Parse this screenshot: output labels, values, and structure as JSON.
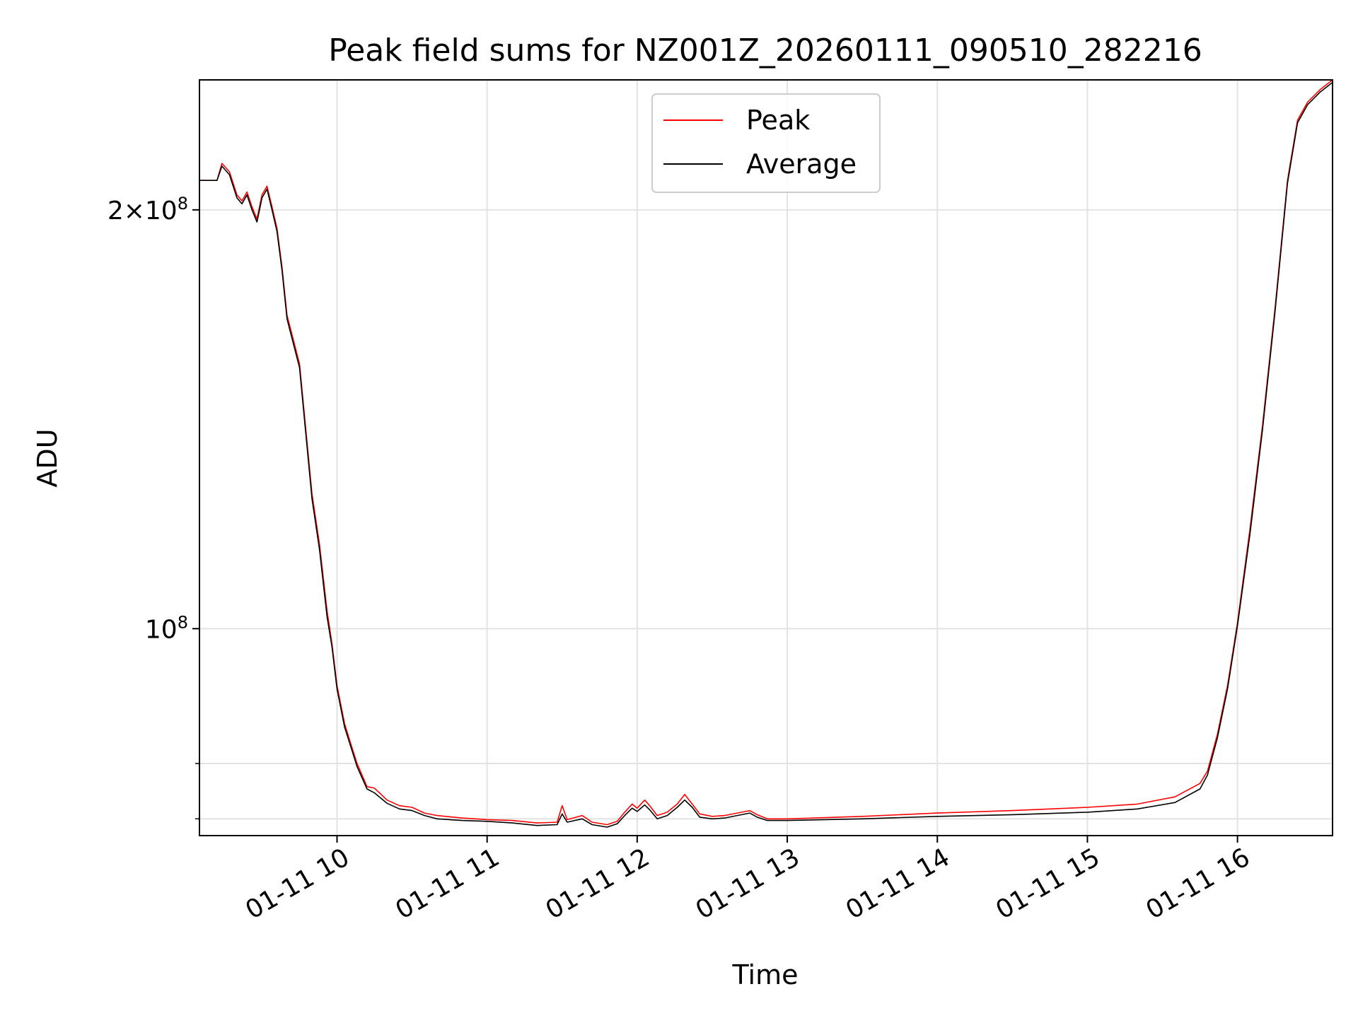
{
  "chart_data": {
    "type": "line",
    "title": "Peak field sums for NZ001Z_20260111_090510_282216",
    "xlabel": "Time",
    "ylabel": "ADU",
    "yscale": "log",
    "grid": true,
    "legend_placement": "upper-center",
    "xlim": [
      "2026-01-11 09:05",
      "2026-01-11 16:38"
    ],
    "ylim": [
      71000000,
      248000000
    ],
    "x_ticks": [
      {
        "value": "2026-01-11 10:00",
        "label": "01-11 10"
      },
      {
        "value": "2026-01-11 11:00",
        "label": "01-11 11"
      },
      {
        "value": "2026-01-11 12:00",
        "label": "01-11 12"
      },
      {
        "value": "2026-01-11 13:00",
        "label": "01-11 13"
      },
      {
        "value": "2026-01-11 14:00",
        "label": "01-11 14"
      },
      {
        "value": "2026-01-11 15:00",
        "label": "01-11 15"
      },
      {
        "value": "2026-01-11 16:00",
        "label": "01-11 16"
      }
    ],
    "y_major_ticks": [
      {
        "value": 100000000,
        "base": "10",
        "exp": "8",
        "mantissa": ""
      },
      {
        "value": 200000000,
        "base": "10",
        "exp": "8",
        "mantissa": "2×"
      }
    ],
    "y_minor_ticks": [
      73000000,
      80000000
    ],
    "colors": {
      "peak": "#ff0000",
      "average": "#000000",
      "grid": "#e3e3e3"
    },
    "series": [
      {
        "name": "Peak",
        "color": "#ff0000",
        "points": [
          [
            "2026-01-11 09:05",
            210000000
          ],
          [
            "2026-01-11 09:12",
            210000000
          ],
          [
            "2026-01-11 09:14",
            216000000
          ],
          [
            "2026-01-11 09:17",
            213000000
          ],
          [
            "2026-01-11 09:20",
            205000000
          ],
          [
            "2026-01-11 09:22",
            203000000
          ],
          [
            "2026-01-11 09:24",
            206000000
          ],
          [
            "2026-01-11 09:26",
            201000000
          ],
          [
            "2026-01-11 09:28",
            197000000
          ],
          [
            "2026-01-11 09:30",
            205000000
          ],
          [
            "2026-01-11 09:32",
            208000000
          ],
          [
            "2026-01-11 09:34",
            201000000
          ],
          [
            "2026-01-11 09:36",
            194000000
          ],
          [
            "2026-01-11 09:38",
            182000000
          ],
          [
            "2026-01-11 09:40",
            168000000
          ],
          [
            "2026-01-11 09:45",
            155000000
          ],
          [
            "2026-01-11 09:50",
            125000000
          ],
          [
            "2026-01-11 09:53",
            115000000
          ],
          [
            "2026-01-11 09:56",
            103000000
          ],
          [
            "2026-01-11 09:58",
            97500000
          ],
          [
            "2026-01-11 10:00",
            91000000
          ],
          [
            "2026-01-11 10:03",
            85500000
          ],
          [
            "2026-01-11 10:05",
            83200000
          ],
          [
            "2026-01-11 10:08",
            80000000
          ],
          [
            "2026-01-11 10:12",
            77000000
          ],
          [
            "2026-01-11 10:15",
            76800000
          ],
          [
            "2026-01-11 10:20",
            75300000
          ],
          [
            "2026-01-11 10:25",
            74600000
          ],
          [
            "2026-01-11 10:30",
            74400000
          ],
          [
            "2026-01-11 10:35",
            73700000
          ],
          [
            "2026-01-11 10:40",
            73400000
          ],
          [
            "2026-01-11 10:50",
            73100000
          ],
          [
            "2026-01-11 11:00",
            72900000
          ],
          [
            "2026-01-11 11:10",
            72800000
          ],
          [
            "2026-01-11 11:20",
            72500000
          ],
          [
            "2026-01-11 11:28",
            72600000
          ],
          [
            "2026-01-11 11:30",
            74600000
          ],
          [
            "2026-01-11 11:32",
            72900000
          ],
          [
            "2026-01-11 11:38",
            73400000
          ],
          [
            "2026-01-11 11:42",
            72600000
          ],
          [
            "2026-01-11 11:48",
            72300000
          ],
          [
            "2026-01-11 11:52",
            72700000
          ],
          [
            "2026-01-11 11:55",
            73800000
          ],
          [
            "2026-01-11 11:58",
            74800000
          ],
          [
            "2026-01-11 12:00",
            74300000
          ],
          [
            "2026-01-11 12:03",
            75300000
          ],
          [
            "2026-01-11 12:05",
            74600000
          ],
          [
            "2026-01-11 12:08",
            73400000
          ],
          [
            "2026-01-11 12:12",
            73800000
          ],
          [
            "2026-01-11 12:16",
            74800000
          ],
          [
            "2026-01-11 12:19",
            76000000
          ],
          [
            "2026-01-11 12:22",
            74800000
          ],
          [
            "2026-01-11 12:25",
            73600000
          ],
          [
            "2026-01-11 12:30",
            73300000
          ],
          [
            "2026-01-11 12:35",
            73400000
          ],
          [
            "2026-01-11 12:40",
            73700000
          ],
          [
            "2026-01-11 12:45",
            74000000
          ],
          [
            "2026-01-11 12:48",
            73500000
          ],
          [
            "2026-01-11 12:52",
            73000000
          ],
          [
            "2026-01-11 13:00",
            73000000
          ],
          [
            "2026-01-11 13:30",
            73300000
          ],
          [
            "2026-01-11 14:00",
            73700000
          ],
          [
            "2026-01-11 14:30",
            74000000
          ],
          [
            "2026-01-11 15:00",
            74400000
          ],
          [
            "2026-01-11 15:20",
            74800000
          ],
          [
            "2026-01-11 15:35",
            75700000
          ],
          [
            "2026-01-11 15:45",
            77400000
          ],
          [
            "2026-01-11 15:48",
            79000000
          ],
          [
            "2026-01-11 15:52",
            84000000
          ],
          [
            "2026-01-11 15:56",
            91000000
          ],
          [
            "2026-01-11 16:00",
            101000000
          ],
          [
            "2026-01-11 16:05",
            118000000
          ],
          [
            "2026-01-11 16:10",
            140000000
          ],
          [
            "2026-01-11 16:15",
            170000000
          ],
          [
            "2026-01-11 16:20",
            210000000
          ],
          [
            "2026-01-11 16:24",
            232000000
          ],
          [
            "2026-01-11 16:28",
            239000000
          ],
          [
            "2026-01-11 16:33",
            244000000
          ],
          [
            "2026-01-11 16:38",
            248000000
          ]
        ]
      },
      {
        "name": "Average",
        "color": "#000000",
        "points": [
          [
            "2026-01-11 09:05",
            210000000
          ],
          [
            "2026-01-11 09:12",
            210000000
          ],
          [
            "2026-01-11 09:14",
            215000000
          ],
          [
            "2026-01-11 09:17",
            212000000
          ],
          [
            "2026-01-11 09:20",
            204000000
          ],
          [
            "2026-01-11 09:22",
            202000000
          ],
          [
            "2026-01-11 09:24",
            205000000
          ],
          [
            "2026-01-11 09:26",
            200000000
          ],
          [
            "2026-01-11 09:28",
            196000000
          ],
          [
            "2026-01-11 09:30",
            204000000
          ],
          [
            "2026-01-11 09:32",
            207000000
          ],
          [
            "2026-01-11 09:34",
            200000000
          ],
          [
            "2026-01-11 09:36",
            193000000
          ],
          [
            "2026-01-11 09:38",
            181000000
          ],
          [
            "2026-01-11 09:40",
            167000000
          ],
          [
            "2026-01-11 09:45",
            154000000
          ],
          [
            "2026-01-11 09:50",
            124000000
          ],
          [
            "2026-01-11 09:53",
            114000000
          ],
          [
            "2026-01-11 09:56",
            102000000
          ],
          [
            "2026-01-11 09:58",
            97000000
          ],
          [
            "2026-01-11 10:00",
            90500000
          ],
          [
            "2026-01-11 10:03",
            85000000
          ],
          [
            "2026-01-11 10:05",
            82800000
          ],
          [
            "2026-01-11 10:08",
            79600000
          ],
          [
            "2026-01-11 10:12",
            76700000
          ],
          [
            "2026-01-11 10:15",
            76200000
          ],
          [
            "2026-01-11 10:20",
            74900000
          ],
          [
            "2026-01-11 10:25",
            74200000
          ],
          [
            "2026-01-11 10:30",
            74000000
          ],
          [
            "2026-01-11 10:35",
            73400000
          ],
          [
            "2026-01-11 10:40",
            73000000
          ],
          [
            "2026-01-11 10:50",
            72800000
          ],
          [
            "2026-01-11 11:00",
            72700000
          ],
          [
            "2026-01-11 11:10",
            72500000
          ],
          [
            "2026-01-11 11:20",
            72200000
          ],
          [
            "2026-01-11 11:28",
            72300000
          ],
          [
            "2026-01-11 11:30",
            73600000
          ],
          [
            "2026-01-11 11:32",
            72600000
          ],
          [
            "2026-01-11 11:38",
            73000000
          ],
          [
            "2026-01-11 11:42",
            72300000
          ],
          [
            "2026-01-11 11:48",
            72000000
          ],
          [
            "2026-01-11 11:52",
            72400000
          ],
          [
            "2026-01-11 11:55",
            73400000
          ],
          [
            "2026-01-11 11:58",
            74300000
          ],
          [
            "2026-01-11 12:00",
            73900000
          ],
          [
            "2026-01-11 12:03",
            74700000
          ],
          [
            "2026-01-11 12:05",
            74100000
          ],
          [
            "2026-01-11 12:08",
            73000000
          ],
          [
            "2026-01-11 12:12",
            73400000
          ],
          [
            "2026-01-11 12:16",
            74400000
          ],
          [
            "2026-01-11 12:19",
            75300000
          ],
          [
            "2026-01-11 12:22",
            74400000
          ],
          [
            "2026-01-11 12:25",
            73200000
          ],
          [
            "2026-01-11 12:30",
            73000000
          ],
          [
            "2026-01-11 12:35",
            73100000
          ],
          [
            "2026-01-11 12:40",
            73400000
          ],
          [
            "2026-01-11 12:45",
            73700000
          ],
          [
            "2026-01-11 12:48",
            73200000
          ],
          [
            "2026-01-11 12:52",
            72800000
          ],
          [
            "2026-01-11 13:00",
            72800000
          ],
          [
            "2026-01-11 13:30",
            73000000
          ],
          [
            "2026-01-11 14:00",
            73300000
          ],
          [
            "2026-01-11 14:30",
            73500000
          ],
          [
            "2026-01-11 15:00",
            73800000
          ],
          [
            "2026-01-11 15:20",
            74200000
          ],
          [
            "2026-01-11 15:35",
            75000000
          ],
          [
            "2026-01-11 15:45",
            76700000
          ],
          [
            "2026-01-11 15:48",
            78500000
          ],
          [
            "2026-01-11 15:52",
            83500000
          ],
          [
            "2026-01-11 15:56",
            90500000
          ],
          [
            "2026-01-11 16:00",
            100500000
          ],
          [
            "2026-01-11 16:05",
            117000000
          ],
          [
            "2026-01-11 16:10",
            139000000
          ],
          [
            "2026-01-11 16:15",
            169000000
          ],
          [
            "2026-01-11 16:20",
            209000000
          ],
          [
            "2026-01-11 16:24",
            231000000
          ],
          [
            "2026-01-11 16:28",
            238000000
          ],
          [
            "2026-01-11 16:33",
            243000000
          ],
          [
            "2026-01-11 16:38",
            247000000
          ]
        ]
      }
    ]
  }
}
